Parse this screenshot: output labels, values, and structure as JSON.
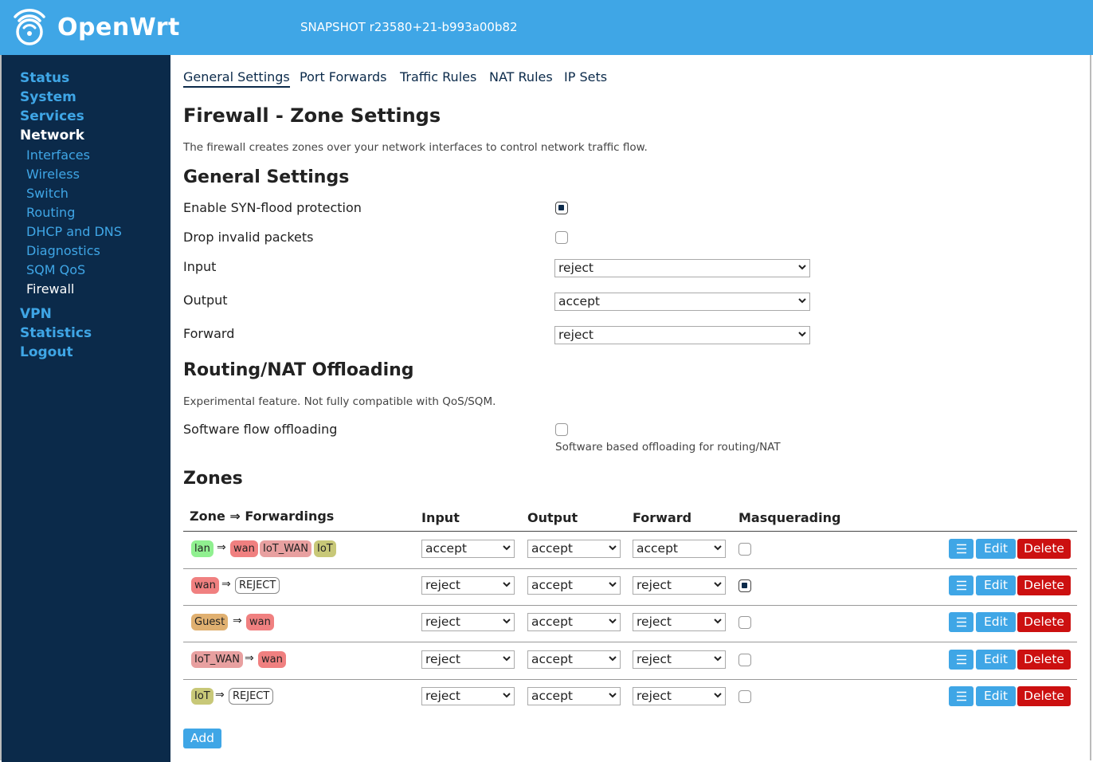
{
  "header": {
    "brand": "OpenWrt",
    "version": "SNAPSHOT r23580+21-b993a00b82",
    "color": "#3fa6e6"
  },
  "sidebar": {
    "items": [
      {
        "label": "Status"
      },
      {
        "label": "System"
      },
      {
        "label": "Services"
      },
      {
        "label": "Network"
      },
      {
        "label": "VPN"
      },
      {
        "label": "Statistics"
      },
      {
        "label": "Logout"
      }
    ],
    "network_sub": [
      {
        "label": "Interfaces"
      },
      {
        "label": "Wireless"
      },
      {
        "label": "Switch"
      },
      {
        "label": "Routing"
      },
      {
        "label": "DHCP and DNS"
      },
      {
        "label": "Diagnostics"
      },
      {
        "label": "SQM QoS"
      },
      {
        "label": "Firewall"
      }
    ],
    "active_top": "Network",
    "active_sub": "Firewall"
  },
  "tabs": [
    {
      "label": "General Settings"
    },
    {
      "label": "Port Forwards"
    },
    {
      "label": "Traffic Rules"
    },
    {
      "label": "NAT Rules"
    },
    {
      "label": "IP Sets"
    }
  ],
  "page": {
    "title": "Firewall - Zone Settings",
    "description": "The firewall creates zones over your network interfaces to control network traffic flow."
  },
  "general": {
    "heading": "General Settings",
    "syn_flood_label": "Enable SYN-flood protection",
    "syn_flood_checked": true,
    "drop_invalid_label": "Drop invalid packets",
    "drop_invalid_checked": false,
    "input_label": "Input",
    "input_value": "reject",
    "output_label": "Output",
    "output_value": "accept",
    "forward_label": "Forward",
    "forward_value": "reject"
  },
  "offloading": {
    "heading": "Routing/NAT Offloading",
    "description": "Experimental feature. Not fully compatible with QoS/SQM.",
    "software_label": "Software flow offloading",
    "software_checked": false,
    "software_hint": "Software based offloading for routing/NAT"
  },
  "zones": {
    "heading": "Zones",
    "columns": {
      "zone": "Zone ⇒ Forwardings",
      "input": "Input",
      "output": "Output",
      "forward": "Forward",
      "masq": "Masquerading"
    },
    "arrow": "⇒",
    "rows": [
      {
        "zone": "lan",
        "zone_class": "lan",
        "forwards": [
          {
            "name": "wan",
            "cls": "wan"
          },
          {
            "name": "IoT_WAN",
            "cls": "iotwan"
          },
          {
            "name": "IoT",
            "cls": "iot"
          }
        ],
        "input": "accept",
        "output": "accept",
        "forward": "accept",
        "masq": false
      },
      {
        "zone": "wan",
        "zone_class": "wan",
        "forwards": [
          {
            "name": "REJECT",
            "cls": "reject"
          }
        ],
        "input": "reject",
        "output": "accept",
        "forward": "reject",
        "masq": true
      },
      {
        "zone": "Guest",
        "zone_class": "guest",
        "forwards": [
          {
            "name": "wan",
            "cls": "wan"
          }
        ],
        "input": "reject",
        "output": "accept",
        "forward": "reject",
        "masq": false
      },
      {
        "zone": "IoT_WAN",
        "zone_class": "iotwan",
        "forwards": [
          {
            "name": "wan",
            "cls": "wan"
          }
        ],
        "input": "reject",
        "output": "accept",
        "forward": "reject",
        "masq": false
      },
      {
        "zone": "IoT",
        "zone_class": "iot",
        "forwards": [
          {
            "name": "REJECT",
            "cls": "reject"
          }
        ],
        "input": "reject",
        "output": "accept",
        "forward": "reject",
        "masq": false
      }
    ],
    "menu_icon": "hamburger-icon",
    "edit_label": "Edit",
    "delete_label": "Delete",
    "add_label": "Add"
  }
}
